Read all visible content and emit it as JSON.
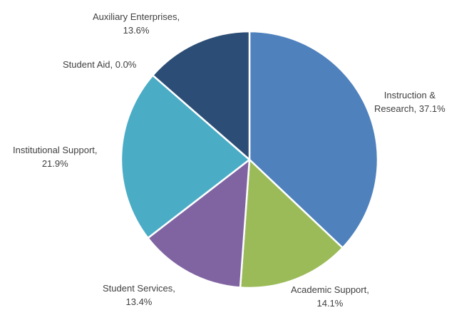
{
  "chart_data": {
    "type": "pie",
    "title": "",
    "categories": [
      "Instruction & Research",
      "Academic Support",
      "Student Services",
      "Institutional Support",
      "Student Aid",
      "Auxiliary Enterprises"
    ],
    "values": [
      37.1,
      14.1,
      13.4,
      21.9,
      0.0,
      13.6
    ],
    "unit": "%",
    "colors": [
      "#4F81BD",
      "#9BBB59",
      "#8064A2",
      "#4BACC6",
      "#F79646",
      "#2C4D75"
    ],
    "start_angle_deg": 0,
    "direction": "clockwise",
    "legend": "none",
    "data_labels": "category, percent"
  },
  "labels": [
    {
      "line1": "Instruction &",
      "line2": "Research, 37.1%"
    },
    {
      "line1": "Academic Support,",
      "line2": "14.1%"
    },
    {
      "line1": "Student Services,",
      "line2": "13.4%"
    },
    {
      "line1": "Institutional Support,",
      "line2": "21.9%"
    },
    {
      "line1": "Student Aid, 0.0%",
      "line2": ""
    },
    {
      "line1": "Auxiliary Enterprises,",
      "line2": "13.6%"
    }
  ]
}
